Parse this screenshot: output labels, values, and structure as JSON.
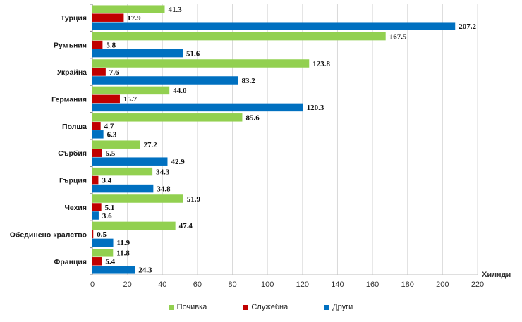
{
  "chart_data": {
    "type": "bar",
    "orientation": "horizontal",
    "title": "",
    "xlabel": "Хиляди",
    "ylabel": "",
    "xlim": [
      0,
      220
    ],
    "xticks": [
      0,
      20,
      40,
      60,
      80,
      100,
      120,
      140,
      160,
      180,
      200,
      220
    ],
    "grid": true,
    "legend_position": "bottom",
    "categories": [
      "Турция",
      "Румъния",
      "Украйна",
      "Германия",
      "Полша",
      "Сърбия",
      "Гърция",
      "Чехия",
      "Обединено кралство",
      "Франция"
    ],
    "series": [
      {
        "name": "Почивка",
        "color": "#92D050",
        "values": [
          41.3,
          167.5,
          123.8,
          44.0,
          85.6,
          27.2,
          34.3,
          51.9,
          47.4,
          11.8
        ],
        "labels": [
          "41.3",
          "167.5",
          "123.8",
          "44.0",
          "85.6",
          "27.2",
          "34.3",
          "51.9",
          "47.4",
          "11.8"
        ]
      },
      {
        "name": "Служебна",
        "color": "#C00000",
        "values": [
          17.9,
          5.8,
          7.6,
          15.7,
          4.7,
          5.5,
          3.4,
          5.1,
          0.5,
          5.4
        ],
        "labels": [
          "17.9",
          "5.8",
          "7.6",
          "15.7",
          "4.7",
          "5.5",
          "3.4",
          "5.1",
          "0.5",
          "5.4"
        ]
      },
      {
        "name": "Други",
        "color": "#0070C0",
        "values": [
          207.2,
          51.6,
          83.2,
          120.3,
          6.3,
          42.9,
          34.8,
          3.6,
          11.9,
          24.3
        ],
        "labels": [
          "207.2",
          "51.6",
          "83.2",
          "120.3",
          "6.3",
          "42.9",
          "34.8",
          "3.6",
          "11.9",
          "24.3"
        ]
      }
    ]
  }
}
